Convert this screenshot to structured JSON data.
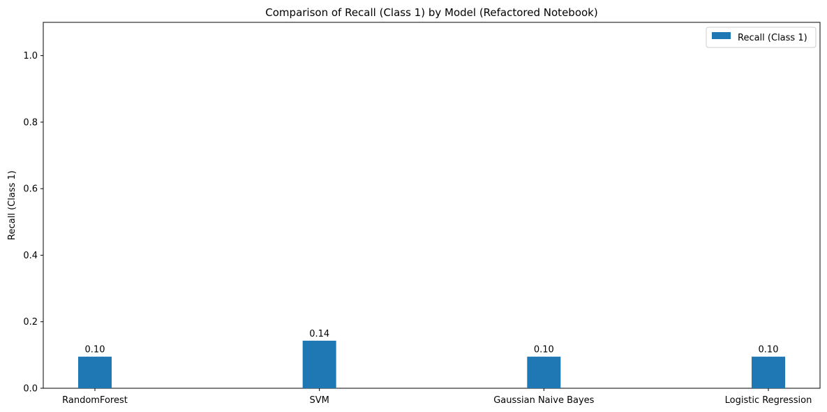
{
  "chart_data": {
    "type": "bar",
    "title": "Comparison of Recall (Class 1) by Model (Refactored Notebook)",
    "xlabel": "",
    "ylabel": "Recall (Class 1)",
    "categories": [
      "RandomForest",
      "SVM",
      "Gaussian Naive Bayes",
      "Logistic Regression"
    ],
    "series": [
      {
        "name": "Recall (Class 1)",
        "values": [
          0.095,
          0.143,
          0.095,
          0.095
        ],
        "data_labels": [
          "0.10",
          "0.14",
          "0.10",
          "0.10"
        ],
        "color": "#1f77b4"
      }
    ],
    "ylim": [
      0,
      1.1
    ],
    "yticks": [
      0.0,
      0.2,
      0.4,
      0.6,
      0.8,
      1.0
    ],
    "ytick_labels": [
      "0.0",
      "0.2",
      "0.4",
      "0.6",
      "0.8",
      "1.0"
    ],
    "grid": false,
    "legend_position": "top-right"
  }
}
